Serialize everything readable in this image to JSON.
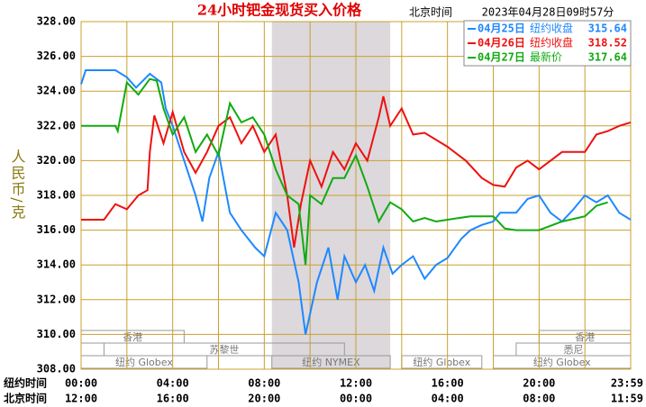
{
  "chart_data": {
    "type": "line",
    "title": "24小时钯金现货买入价格",
    "subtitle": "北京时间",
    "timestamp": "2023年04月28日09时57分",
    "ylabel": "人民币/克",
    "xlim": [
      0,
      24
    ],
    "ylim": [
      308,
      328
    ],
    "yticks": [
      {
        "value": 308,
        "label": "308.00"
      },
      {
        "value": 310,
        "label": "310.00"
      },
      {
        "value": 312,
        "label": "312.00"
      },
      {
        "value": 314,
        "label": "314.00"
      },
      {
        "value": 316,
        "label": "316.00"
      },
      {
        "value": 318,
        "label": "318.00"
      },
      {
        "value": 320,
        "label": "320.00"
      },
      {
        "value": 322,
        "label": "322.00"
      },
      {
        "value": 324,
        "label": "324.00"
      },
      {
        "value": 326,
        "label": "326.00"
      },
      {
        "value": 328,
        "label": "328.00"
      }
    ],
    "grid_x": [
      0,
      2,
      4,
      6,
      8,
      10,
      12,
      14,
      16,
      18,
      20,
      22,
      24
    ],
    "xtick_row_label": "纽约时间",
    "xticks": [
      {
        "value": 0,
        "label": "00:00"
      },
      {
        "value": 4,
        "label": "04:00"
      },
      {
        "value": 8,
        "label": "08:00"
      },
      {
        "value": 12,
        "label": "12:00"
      },
      {
        "value": 16,
        "label": "16:00"
      },
      {
        "value": 20,
        "label": "20:00"
      },
      {
        "value": 23.98,
        "label": "23:59"
      }
    ],
    "x2tick_row_label": "北京时间",
    "x2ticks": [
      {
        "value": 0,
        "label": "12:00"
      },
      {
        "value": 4,
        "label": "16:00"
      },
      {
        "value": 8,
        "label": "20:00"
      },
      {
        "value": 12,
        "label": "00:00"
      },
      {
        "value": 16,
        "label": "04:00"
      },
      {
        "value": 20,
        "label": "08:00"
      },
      {
        "value": 23.98,
        "label": "11:59"
      }
    ],
    "shaded": [
      8.33,
      13.5
    ],
    "sessions": [
      [
        {
          "name": "香港",
          "start": 0,
          "end": 4.5
        },
        {
          "name": "香港",
          "start": 20,
          "end": 24
        }
      ],
      [
        {
          "name": "苏黎世",
          "start": 1,
          "end": 11.5
        },
        {
          "name": "悉尼",
          "start": 19,
          "end": 24
        }
      ],
      [
        {
          "name": "纽约 Globex",
          "start": 0,
          "end": 5.5
        },
        {
          "name": "纽约 NYMEX",
          "start": 8.33,
          "end": 13.5
        },
        {
          "name": "纽约 Globex",
          "start": 14,
          "end": 17.5
        },
        {
          "name": "纽约 Globex",
          "start": 18,
          "end": 24
        }
      ]
    ],
    "series": [
      {
        "name": "04月25日",
        "legend_note": "纽约收盘",
        "legend_value": 315.64,
        "color": "#1e88ff",
        "x": [
          0,
          0.2,
          1.5,
          2,
          2.4,
          3,
          3.5,
          3.7,
          4,
          4.5,
          5,
          5.3,
          5.6,
          6,
          6.5,
          7,
          7.6,
          8,
          8.5,
          9,
          9.5,
          9.8,
          10.3,
          10.8,
          11.2,
          11.5,
          12,
          12.4,
          12.8,
          13.2,
          13.6,
          14,
          14.5,
          15,
          15.5,
          16,
          16.6,
          17,
          17.5,
          18,
          18.3,
          19,
          19.5,
          20,
          20.5,
          21,
          21.5,
          22,
          22.5,
          23,
          23.5,
          24
        ],
        "values": [
          324.4,
          325.2,
          325.2,
          324.8,
          324.2,
          325,
          324.5,
          323,
          322,
          320,
          318,
          316.5,
          319,
          320.5,
          317,
          316,
          315,
          314.5,
          317,
          316,
          313,
          310,
          313,
          315,
          312,
          314.5,
          313,
          314,
          312.5,
          315,
          313.5,
          314,
          314.5,
          313.2,
          314,
          314.4,
          315.5,
          316,
          316.3,
          316.5,
          317,
          317,
          317.8,
          318,
          317,
          316.5,
          317.2,
          318,
          317.6,
          318,
          317,
          316.6
        ]
      },
      {
        "name": "04月26日",
        "legend_note": "纽约收盘",
        "legend_value": 318.52,
        "color": "#ee1111",
        "x": [
          0,
          1,
          1.5,
          2,
          2.5,
          2.9,
          3,
          3.2,
          3.6,
          4,
          4.5,
          5,
          5.5,
          6,
          6.5,
          7,
          7.5,
          8,
          8.5,
          9,
          9.3,
          9.6,
          10,
          10.5,
          11,
          11.5,
          12,
          12.5,
          13,
          13.2,
          13.5,
          14,
          14.5,
          15,
          16,
          16.8,
          17.5,
          18,
          18.5,
          19,
          19.5,
          20,
          21,
          22,
          22.5,
          23,
          23.5,
          24
        ],
        "values": [
          316.6,
          316.6,
          317.5,
          317.2,
          318,
          318.3,
          320.5,
          322.6,
          321,
          322.8,
          320.5,
          319.3,
          320.5,
          322,
          322.5,
          321,
          322,
          320.5,
          321.5,
          318,
          315,
          317.5,
          320,
          318.5,
          320.5,
          319.5,
          321,
          320,
          322.5,
          323.7,
          322,
          323,
          321.5,
          321.6,
          320.8,
          320,
          319,
          318.6,
          318.5,
          319.6,
          320,
          319.5,
          320.5,
          320.5,
          321.5,
          321.7,
          322,
          322.2
        ]
      },
      {
        "name": "04月27日",
        "legend_note": "最新价",
        "legend_value": 317.64,
        "color": "#11aa11",
        "x": [
          0,
          1.5,
          1.6,
          2,
          2.5,
          3,
          3.3,
          3.6,
          4,
          4.5,
          5,
          5.5,
          6,
          6.5,
          7,
          7.5,
          8,
          8.5,
          9,
          9.5,
          9.8,
          10,
          10.5,
          11,
          11.5,
          12,
          12.5,
          13,
          13.5,
          14,
          14.5,
          15,
          15.5,
          16,
          17,
          18,
          18.5,
          19,
          20,
          21,
          22,
          22.5,
          23
        ],
        "values": [
          322,
          322,
          321.7,
          324.5,
          323.8,
          324.7,
          324.6,
          323,
          321.5,
          322.5,
          320.5,
          321.5,
          320.3,
          323.3,
          322.2,
          322.5,
          321.5,
          319.5,
          318,
          317.5,
          314,
          318,
          317.5,
          319,
          319,
          320.3,
          318.5,
          316.5,
          317.6,
          317.2,
          316.5,
          316.7,
          316.5,
          316.6,
          316.8,
          316.8,
          316.1,
          316,
          316,
          316.5,
          316.8,
          317.4,
          317.6
        ]
      }
    ]
  }
}
